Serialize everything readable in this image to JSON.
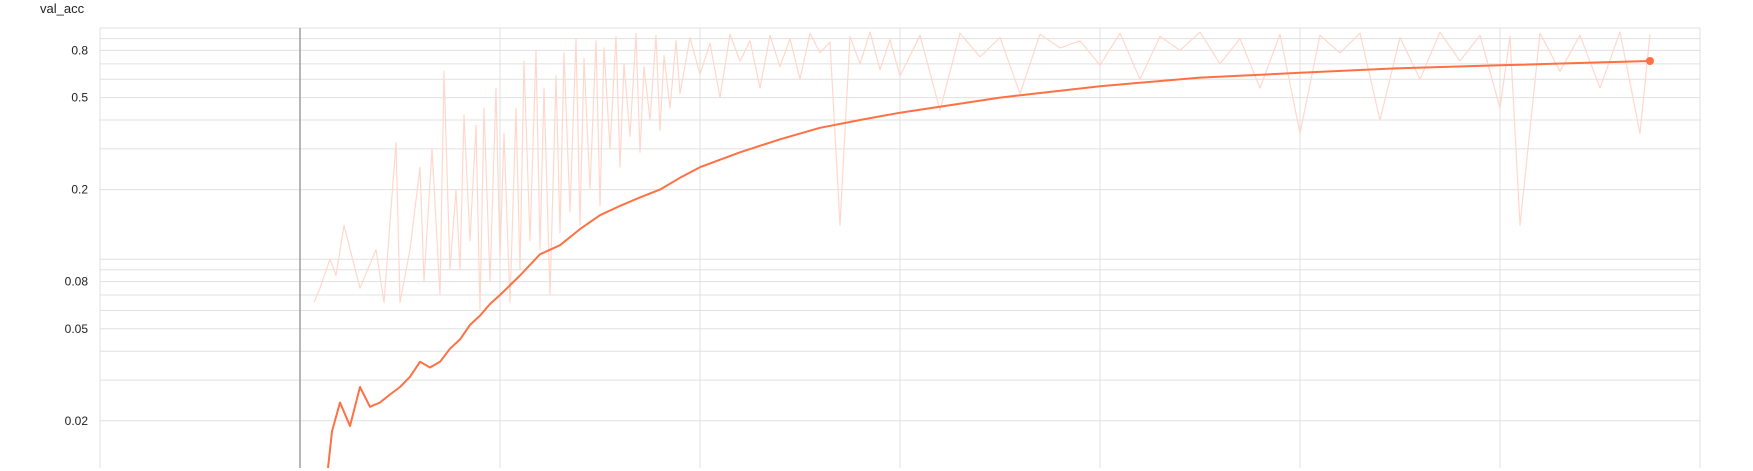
{
  "chart_data": {
    "type": "line",
    "title": "val_acc",
    "xlabel": "",
    "ylabel": "",
    "y_scale": "log",
    "ylim": [
      0.0125,
      1.0
    ],
    "xlim": [
      -1,
      7
    ],
    "grid": true,
    "y_ticks": [
      {
        "value": 0.8,
        "label": "0.8"
      },
      {
        "value": 0.5,
        "label": "0.5"
      },
      {
        "value": 0.2,
        "label": "0.2"
      },
      {
        "value": 0.08,
        "label": "0.08"
      },
      {
        "value": 0.05,
        "label": "0.05"
      },
      {
        "value": 0.02,
        "label": "0.02"
      }
    ],
    "colors": {
      "smoothed": "#ff7043",
      "raw": "#ffd8cc",
      "grid": "#e0e0e0",
      "axis": "#9e9e9e"
    },
    "series": [
      {
        "role": "smoothed",
        "x": [
          0.14,
          0.16,
          0.2,
          0.25,
          0.3,
          0.35,
          0.4,
          0.45,
          0.5,
          0.55,
          0.6,
          0.65,
          0.7,
          0.75,
          0.8,
          0.85,
          0.9,
          0.95,
          1.0,
          1.1,
          1.2,
          1.3,
          1.4,
          1.5,
          1.6,
          1.7,
          1.8,
          1.9,
          2.0,
          2.2,
          2.4,
          2.6,
          2.8,
          3.0,
          3.5,
          4.0,
          4.5,
          5.0,
          5.5,
          6.0,
          6.5,
          6.75
        ],
        "y": [
          0.0125,
          0.018,
          0.024,
          0.019,
          0.028,
          0.023,
          0.024,
          0.026,
          0.028,
          0.031,
          0.036,
          0.034,
          0.036,
          0.041,
          0.045,
          0.052,
          0.057,
          0.064,
          0.07,
          0.085,
          0.105,
          0.115,
          0.135,
          0.155,
          0.17,
          0.185,
          0.2,
          0.225,
          0.25,
          0.29,
          0.33,
          0.37,
          0.4,
          0.43,
          0.5,
          0.56,
          0.61,
          0.64,
          0.67,
          0.69,
          0.71,
          0.72
        ]
      },
      {
        "role": "raw",
        "x": [
          0.07,
          0.1,
          0.15,
          0.18,
          0.22,
          0.3,
          0.38,
          0.42,
          0.48,
          0.5,
          0.55,
          0.6,
          0.62,
          0.66,
          0.7,
          0.72,
          0.75,
          0.78,
          0.8,
          0.82,
          0.85,
          0.88,
          0.9,
          0.92,
          0.95,
          0.98,
          1.0,
          1.02,
          1.05,
          1.08,
          1.1,
          1.12,
          1.15,
          1.18,
          1.2,
          1.22,
          1.25,
          1.28,
          1.3,
          1.32,
          1.35,
          1.38,
          1.4,
          1.42,
          1.45,
          1.48,
          1.5,
          1.52,
          1.55,
          1.58,
          1.6,
          1.62,
          1.65,
          1.68,
          1.7,
          1.72,
          1.75,
          1.78,
          1.8,
          1.82,
          1.85,
          1.88,
          1.9,
          1.95,
          2.0,
          2.05,
          2.1,
          2.15,
          2.2,
          2.25,
          2.3,
          2.35,
          2.4,
          2.45,
          2.5,
          2.55,
          2.6,
          2.65,
          2.7,
          2.75,
          2.8,
          2.85,
          2.9,
          2.95,
          3.0,
          3.1,
          3.2,
          3.3,
          3.4,
          3.5,
          3.6,
          3.7,
          3.8,
          3.9,
          4.0,
          4.1,
          4.2,
          4.3,
          4.4,
          4.5,
          4.6,
          4.7,
          4.8,
          4.9,
          5.0,
          5.1,
          5.2,
          5.3,
          5.4,
          5.5,
          5.6,
          5.7,
          5.8,
          5.9,
          6.0,
          6.05,
          6.1,
          6.2,
          6.3,
          6.4,
          6.5,
          6.6,
          6.7,
          6.75
        ],
        "y": [
          0.065,
          0.075,
          0.1,
          0.085,
          0.14,
          0.075,
          0.11,
          0.065,
          0.32,
          0.065,
          0.11,
          0.25,
          0.08,
          0.3,
          0.07,
          0.65,
          0.09,
          0.2,
          0.09,
          0.42,
          0.12,
          0.38,
          0.06,
          0.45,
          0.08,
          0.55,
          0.1,
          0.35,
          0.065,
          0.45,
          0.09,
          0.72,
          0.12,
          0.8,
          0.11,
          0.55,
          0.07,
          0.62,
          0.13,
          0.78,
          0.16,
          0.9,
          0.14,
          0.74,
          0.2,
          0.88,
          0.17,
          0.82,
          0.3,
          0.92,
          0.25,
          0.7,
          0.34,
          0.95,
          0.29,
          0.68,
          0.4,
          0.93,
          0.36,
          0.76,
          0.45,
          0.88,
          0.52,
          0.91,
          0.63,
          0.86,
          0.5,
          0.94,
          0.72,
          0.88,
          0.55,
          0.93,
          0.68,
          0.9,
          0.6,
          0.95,
          0.78,
          0.87,
          0.14,
          0.92,
          0.7,
          0.96,
          0.66,
          0.89,
          0.62,
          0.93,
          0.44,
          0.95,
          0.75,
          0.91,
          0.52,
          0.94,
          0.82,
          0.88,
          0.69,
          0.95,
          0.6,
          0.92,
          0.8,
          0.96,
          0.7,
          0.9,
          0.55,
          0.94,
          0.35,
          0.93,
          0.78,
          0.95,
          0.4,
          0.91,
          0.6,
          0.96,
          0.72,
          0.93,
          0.45,
          0.92,
          0.14,
          0.95,
          0.65,
          0.93,
          0.55,
          0.96,
          0.35,
          0.94
        ]
      }
    ]
  }
}
